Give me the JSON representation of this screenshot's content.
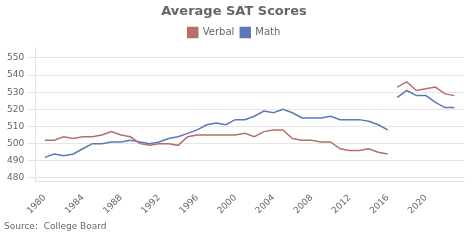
{
  "chart_data": {
    "type": "line",
    "title": "Average SAT Scores",
    "annotation": "Source:  College Board",
    "xlim": [
      1979,
      2024
    ],
    "xticks": [
      1980,
      1984,
      1988,
      1992,
      1996,
      2000,
      2004,
      2008,
      2012,
      2016,
      2020
    ],
    "ylim": [
      478,
      556
    ],
    "yticks": [
      480,
      490,
      500,
      510,
      520,
      530,
      540,
      550
    ],
    "grid": "y",
    "legend": "top",
    "series": [
      {
        "name": "Verbal",
        "color": "#b5706b",
        "x": [
          1980,
          1981,
          1982,
          1983,
          1984,
          1985,
          1986,
          1987,
          1988,
          1989,
          1990,
          1991,
          1992,
          1993,
          1994,
          1995,
          1996,
          1997,
          1998,
          1999,
          2000,
          2001,
          2002,
          2003,
          2004,
          2005,
          2006,
          2007,
          2008,
          2009,
          2010,
          2011,
          2012,
          2013,
          2014,
          2015,
          2016
        ],
        "values": [
          502,
          502,
          504,
          503,
          504,
          504,
          505,
          507,
          505,
          504,
          500,
          499,
          500,
          500,
          499,
          504,
          505,
          505,
          505,
          505,
          505,
          506,
          504,
          507,
          508,
          508,
          503,
          502,
          502,
          501,
          501,
          497,
          496,
          496,
          497,
          495,
          494
        ]
      },
      {
        "name": "Math",
        "color": "#5b78b8",
        "x": [
          1980,
          1981,
          1982,
          1983,
          1984,
          1985,
          1986,
          1987,
          1988,
          1989,
          1990,
          1991,
          1992,
          1993,
          1994,
          1995,
          1996,
          1997,
          1998,
          1999,
          2000,
          2001,
          2002,
          2003,
          2004,
          2005,
          2006,
          2007,
          2008,
          2009,
          2010,
          2011,
          2012,
          2013,
          2014,
          2015,
          2016
        ],
        "values": [
          492,
          494,
          493,
          494,
          497,
          500,
          500,
          501,
          501,
          502,
          501,
          500,
          501,
          503,
          504,
          506,
          508,
          511,
          512,
          511,
          514,
          514,
          516,
          519,
          518,
          520,
          518,
          515,
          515,
          515,
          516,
          514,
          514,
          514,
          513,
          511,
          508
        ]
      },
      {
        "name": "Verbal",
        "color": "#b5706b",
        "x": [
          2017,
          2018,
          2019,
          2020,
          2021,
          2022,
          2023
        ],
        "values": [
          533,
          536,
          531,
          532,
          533,
          529,
          528
        ]
      },
      {
        "name": "Math",
        "color": "#5b78b8",
        "x": [
          2017,
          2018,
          2019,
          2020,
          2021,
          2022,
          2023
        ],
        "values": [
          527,
          531,
          528,
          528,
          524,
          521,
          521
        ]
      }
    ]
  }
}
